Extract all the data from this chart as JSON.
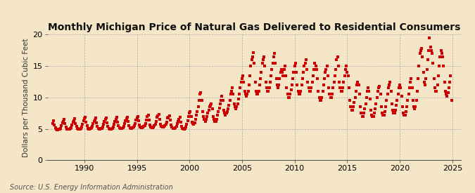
{
  "title": "Monthly Michigan Price of Natural Gas Delivered to Residential Consumers",
  "ylabel": "Dollars per Thousand Cubic Feet",
  "source": "Source: U.S. Energy Information Administration",
  "bg_color": "#F5E6C8",
  "plot_bg_color": "#F5E6C8",
  "marker_color": "#CC0000",
  "xlim": [
    1986.5,
    2025.8
  ],
  "ylim": [
    0,
    20
  ],
  "yticks": [
    0,
    5,
    10,
    15,
    20
  ],
  "xticks": [
    1990,
    1995,
    2000,
    2005,
    2010,
    2015,
    2020,
    2025
  ],
  "marker_size": 5,
  "title_fontsize": 10,
  "ylabel_fontsize": 7.5,
  "tick_fontsize": 8,
  "source_fontsize": 7,
  "monthly_data": [
    [
      1987.0,
      5.8
    ],
    [
      1987.083,
      6.3
    ],
    [
      1987.167,
      5.6
    ],
    [
      1987.25,
      5.2
    ],
    [
      1987.333,
      4.9
    ],
    [
      1987.417,
      4.8
    ],
    [
      1987.5,
      4.8
    ],
    [
      1987.583,
      4.9
    ],
    [
      1987.667,
      5.0
    ],
    [
      1987.75,
      5.1
    ],
    [
      1987.833,
      5.5
    ],
    [
      1987.917,
      6.0
    ],
    [
      1988.0,
      6.2
    ],
    [
      1988.083,
      6.5
    ],
    [
      1988.167,
      5.8
    ],
    [
      1988.25,
      5.3
    ],
    [
      1988.333,
      5.0
    ],
    [
      1988.417,
      4.9
    ],
    [
      1988.5,
      4.9
    ],
    [
      1988.583,
      5.0
    ],
    [
      1988.667,
      5.1
    ],
    [
      1988.75,
      5.2
    ],
    [
      1988.833,
      5.6
    ],
    [
      1988.917,
      6.1
    ],
    [
      1989.0,
      6.3
    ],
    [
      1989.083,
      6.6
    ],
    [
      1989.167,
      5.9
    ],
    [
      1989.25,
      5.4
    ],
    [
      1989.333,
      5.1
    ],
    [
      1989.417,
      4.9
    ],
    [
      1989.5,
      5.0
    ],
    [
      1989.583,
      5.0
    ],
    [
      1989.667,
      5.1
    ],
    [
      1989.75,
      5.3
    ],
    [
      1989.833,
      5.7
    ],
    [
      1989.917,
      6.3
    ],
    [
      1990.0,
      6.6
    ],
    [
      1990.083,
      6.8
    ],
    [
      1990.167,
      6.1
    ],
    [
      1990.25,
      5.5
    ],
    [
      1990.333,
      5.1
    ],
    [
      1990.417,
      5.0
    ],
    [
      1990.5,
      5.0
    ],
    [
      1990.583,
      5.1
    ],
    [
      1990.667,
      5.2
    ],
    [
      1990.75,
      5.4
    ],
    [
      1990.833,
      5.8
    ],
    [
      1990.917,
      6.2
    ],
    [
      1991.0,
      6.4
    ],
    [
      1991.083,
      6.7
    ],
    [
      1991.167,
      6.0
    ],
    [
      1991.25,
      5.4
    ],
    [
      1991.333,
      5.1
    ],
    [
      1991.417,
      5.0
    ],
    [
      1991.5,
      5.0
    ],
    [
      1991.583,
      5.1
    ],
    [
      1991.667,
      5.1
    ],
    [
      1991.75,
      5.3
    ],
    [
      1991.833,
      5.7
    ],
    [
      1991.917,
      6.2
    ],
    [
      1992.0,
      6.5
    ],
    [
      1992.083,
      6.7
    ],
    [
      1992.167,
      6.0
    ],
    [
      1992.25,
      5.4
    ],
    [
      1992.333,
      5.1
    ],
    [
      1992.417,
      5.0
    ],
    [
      1992.5,
      5.0
    ],
    [
      1992.583,
      5.0
    ],
    [
      1992.667,
      5.1
    ],
    [
      1992.75,
      5.3
    ],
    [
      1992.833,
      5.7
    ],
    [
      1992.917,
      6.2
    ],
    [
      1993.0,
      6.5
    ],
    [
      1993.083,
      6.8
    ],
    [
      1993.167,
      6.1
    ],
    [
      1993.25,
      5.5
    ],
    [
      1993.333,
      5.2
    ],
    [
      1993.417,
      5.1
    ],
    [
      1993.5,
      5.1
    ],
    [
      1993.583,
      5.1
    ],
    [
      1993.667,
      5.2
    ],
    [
      1993.75,
      5.4
    ],
    [
      1993.833,
      5.8
    ],
    [
      1993.917,
      6.3
    ],
    [
      1994.0,
      6.6
    ],
    [
      1994.083,
      6.9
    ],
    [
      1994.167,
      6.2
    ],
    [
      1994.25,
      5.5
    ],
    [
      1994.333,
      5.2
    ],
    [
      1994.417,
      5.1
    ],
    [
      1994.5,
      5.1
    ],
    [
      1994.583,
      5.2
    ],
    [
      1994.667,
      5.3
    ],
    [
      1994.75,
      5.5
    ],
    [
      1994.833,
      5.9
    ],
    [
      1994.917,
      6.4
    ],
    [
      1995.0,
      6.7
    ],
    [
      1995.083,
      7.0
    ],
    [
      1995.167,
      6.3
    ],
    [
      1995.25,
      5.6
    ],
    [
      1995.333,
      5.3
    ],
    [
      1995.417,
      5.2
    ],
    [
      1995.5,
      5.2
    ],
    [
      1995.583,
      5.3
    ],
    [
      1995.667,
      5.4
    ],
    [
      1995.75,
      5.5
    ],
    [
      1995.833,
      5.9
    ],
    [
      1995.917,
      6.4
    ],
    [
      1996.0,
      7.0
    ],
    [
      1996.083,
      7.2
    ],
    [
      1996.167,
      6.4
    ],
    [
      1996.25,
      5.6
    ],
    [
      1996.333,
      5.3
    ],
    [
      1996.417,
      5.2
    ],
    [
      1996.5,
      5.2
    ],
    [
      1996.583,
      5.3
    ],
    [
      1996.667,
      5.5
    ],
    [
      1996.75,
      5.7
    ],
    [
      1996.833,
      6.2
    ],
    [
      1996.917,
      6.8
    ],
    [
      1997.0,
      7.1
    ],
    [
      1997.083,
      7.3
    ],
    [
      1997.167,
      6.5
    ],
    [
      1997.25,
      5.7
    ],
    [
      1997.333,
      5.4
    ],
    [
      1997.417,
      5.3
    ],
    [
      1997.5,
      5.3
    ],
    [
      1997.583,
      5.4
    ],
    [
      1997.667,
      5.5
    ],
    [
      1997.75,
      5.7
    ],
    [
      1997.833,
      6.1
    ],
    [
      1997.917,
      6.7
    ],
    [
      1998.0,
      6.9
    ],
    [
      1998.083,
      7.1
    ],
    [
      1998.167,
      6.4
    ],
    [
      1998.25,
      5.6
    ],
    [
      1998.333,
      5.3
    ],
    [
      1998.417,
      5.1
    ],
    [
      1998.5,
      5.1
    ],
    [
      1998.583,
      5.1
    ],
    [
      1998.667,
      5.2
    ],
    [
      1998.75,
      5.4
    ],
    [
      1998.833,
      5.8
    ],
    [
      1998.917,
      6.2
    ],
    [
      1999.0,
      6.5
    ],
    [
      1999.083,
      6.8
    ],
    [
      1999.167,
      6.1
    ],
    [
      1999.25,
      5.4
    ],
    [
      1999.333,
      5.1
    ],
    [
      1999.417,
      5.0
    ],
    [
      1999.5,
      5.0
    ],
    [
      1999.583,
      5.1
    ],
    [
      1999.667,
      5.3
    ],
    [
      1999.75,
      5.7
    ],
    [
      1999.833,
      6.3
    ],
    [
      1999.917,
      7.0
    ],
    [
      2000.0,
      7.5
    ],
    [
      2000.083,
      7.8
    ],
    [
      2000.167,
      7.0
    ],
    [
      2000.25,
      6.1
    ],
    [
      2000.333,
      5.8
    ],
    [
      2000.417,
      5.7
    ],
    [
      2000.5,
      6.0
    ],
    [
      2000.583,
      6.5
    ],
    [
      2000.667,
      7.2
    ],
    [
      2000.75,
      7.8
    ],
    [
      2000.833,
      8.5
    ],
    [
      2000.917,
      9.5
    ],
    [
      2001.0,
      10.5
    ],
    [
      2001.083,
      10.8
    ],
    [
      2001.167,
      9.5
    ],
    [
      2001.25,
      7.8
    ],
    [
      2001.333,
      7.0
    ],
    [
      2001.417,
      6.5
    ],
    [
      2001.5,
      6.2
    ],
    [
      2001.583,
      6.5
    ],
    [
      2001.667,
      7.0
    ],
    [
      2001.75,
      7.5
    ],
    [
      2001.833,
      8.0
    ],
    [
      2001.917,
      8.5
    ],
    [
      2002.0,
      8.8
    ],
    [
      2002.083,
      9.0
    ],
    [
      2002.167,
      8.2
    ],
    [
      2002.25,
      7.0
    ],
    [
      2002.333,
      6.5
    ],
    [
      2002.417,
      6.2
    ],
    [
      2002.5,
      6.2
    ],
    [
      2002.583,
      6.5
    ],
    [
      2002.667,
      7.2
    ],
    [
      2002.75,
      7.8
    ],
    [
      2002.833,
      8.3
    ],
    [
      2002.917,
      9.0
    ],
    [
      2003.0,
      9.5
    ],
    [
      2003.083,
      10.2
    ],
    [
      2003.167,
      9.5
    ],
    [
      2003.25,
      8.0
    ],
    [
      2003.333,
      7.5
    ],
    [
      2003.417,
      7.2
    ],
    [
      2003.5,
      7.5
    ],
    [
      2003.583,
      7.8
    ],
    [
      2003.667,
      8.2
    ],
    [
      2003.75,
      8.8
    ],
    [
      2003.833,
      9.5
    ],
    [
      2003.917,
      10.5
    ],
    [
      2004.0,
      11.0
    ],
    [
      2004.083,
      11.5
    ],
    [
      2004.167,
      10.5
    ],
    [
      2004.25,
      9.0
    ],
    [
      2004.333,
      8.5
    ],
    [
      2004.417,
      8.2
    ],
    [
      2004.5,
      8.5
    ],
    [
      2004.583,
      9.0
    ],
    [
      2004.667,
      9.8
    ],
    [
      2004.75,
      10.5
    ],
    [
      2004.833,
      11.5
    ],
    [
      2004.917,
      12.5
    ],
    [
      2005.0,
      13.0
    ],
    [
      2005.083,
      13.5
    ],
    [
      2005.167,
      12.5
    ],
    [
      2005.25,
      11.0
    ],
    [
      2005.333,
      10.5
    ],
    [
      2005.417,
      10.2
    ],
    [
      2005.5,
      10.5
    ],
    [
      2005.583,
      11.0
    ],
    [
      2005.667,
      12.0
    ],
    [
      2005.75,
      13.5
    ],
    [
      2005.833,
      15.0
    ],
    [
      2005.917,
      16.0
    ],
    [
      2006.0,
      16.5
    ],
    [
      2006.083,
      17.2
    ],
    [
      2006.167,
      15.5
    ],
    [
      2006.25,
      12.5
    ],
    [
      2006.333,
      11.0
    ],
    [
      2006.417,
      10.5
    ],
    [
      2006.5,
      10.5
    ],
    [
      2006.583,
      11.0
    ],
    [
      2006.667,
      12.0
    ],
    [
      2006.75,
      13.0
    ],
    [
      2006.833,
      14.0
    ],
    [
      2006.917,
      15.5
    ],
    [
      2007.0,
      16.0
    ],
    [
      2007.083,
      16.5
    ],
    [
      2007.167,
      15.0
    ],
    [
      2007.25,
      12.5
    ],
    [
      2007.333,
      11.5
    ],
    [
      2007.417,
      11.0
    ],
    [
      2007.5,
      11.0
    ],
    [
      2007.583,
      11.5
    ],
    [
      2007.667,
      12.5
    ],
    [
      2007.75,
      13.5
    ],
    [
      2007.833,
      14.5
    ],
    [
      2007.917,
      15.5
    ],
    [
      2008.0,
      16.5
    ],
    [
      2008.083,
      17.0
    ],
    [
      2008.167,
      15.5
    ],
    [
      2008.25,
      13.0
    ],
    [
      2008.333,
      12.0
    ],
    [
      2008.417,
      11.5
    ],
    [
      2008.5,
      12.0
    ],
    [
      2008.583,
      13.0
    ],
    [
      2008.667,
      14.0
    ],
    [
      2008.75,
      14.5
    ],
    [
      2008.833,
      14.0
    ],
    [
      2008.917,
      13.5
    ],
    [
      2009.0,
      14.5
    ],
    [
      2009.083,
      15.0
    ],
    [
      2009.167,
      13.5
    ],
    [
      2009.25,
      11.5
    ],
    [
      2009.333,
      10.5
    ],
    [
      2009.417,
      10.0
    ],
    [
      2009.5,
      10.0
    ],
    [
      2009.583,
      10.5
    ],
    [
      2009.667,
      11.2
    ],
    [
      2009.75,
      12.0
    ],
    [
      2009.833,
      13.0
    ],
    [
      2009.917,
      14.0
    ],
    [
      2010.0,
      15.0
    ],
    [
      2010.083,
      15.5
    ],
    [
      2010.167,
      14.0
    ],
    [
      2010.25,
      12.0
    ],
    [
      2010.333,
      11.0
    ],
    [
      2010.417,
      10.5
    ],
    [
      2010.5,
      10.5
    ],
    [
      2010.583,
      11.0
    ],
    [
      2010.667,
      12.0
    ],
    [
      2010.75,
      13.0
    ],
    [
      2010.833,
      14.0
    ],
    [
      2010.917,
      15.0
    ],
    [
      2011.0,
      15.5
    ],
    [
      2011.083,
      16.0
    ],
    [
      2011.167,
      14.5
    ],
    [
      2011.25,
      12.5
    ],
    [
      2011.333,
      11.5
    ],
    [
      2011.417,
      11.0
    ],
    [
      2011.5,
      11.0
    ],
    [
      2011.583,
      11.5
    ],
    [
      2011.667,
      12.5
    ],
    [
      2011.75,
      13.5
    ],
    [
      2011.833,
      14.5
    ],
    [
      2011.917,
      15.5
    ],
    [
      2012.0,
      15.0
    ],
    [
      2012.083,
      14.5
    ],
    [
      2012.167,
      13.0
    ],
    [
      2012.25,
      11.0
    ],
    [
      2012.333,
      10.0
    ],
    [
      2012.417,
      9.5
    ],
    [
      2012.5,
      9.5
    ],
    [
      2012.583,
      10.0
    ],
    [
      2012.667,
      11.0
    ],
    [
      2012.75,
      12.0
    ],
    [
      2012.833,
      13.0
    ],
    [
      2012.917,
      14.0
    ],
    [
      2013.0,
      14.5
    ],
    [
      2013.083,
      15.0
    ],
    [
      2013.167,
      13.5
    ],
    [
      2013.25,
      11.5
    ],
    [
      2013.333,
      10.5
    ],
    [
      2013.417,
      10.0
    ],
    [
      2013.5,
      10.0
    ],
    [
      2013.583,
      10.5
    ],
    [
      2013.667,
      11.5
    ],
    [
      2013.75,
      12.5
    ],
    [
      2013.833,
      13.5
    ],
    [
      2013.917,
      14.5
    ],
    [
      2014.0,
      16.0
    ],
    [
      2014.083,
      16.5
    ],
    [
      2014.167,
      15.0
    ],
    [
      2014.25,
      12.5
    ],
    [
      2014.333,
      11.5
    ],
    [
      2014.417,
      11.0
    ],
    [
      2014.5,
      11.0
    ],
    [
      2014.583,
      11.5
    ],
    [
      2014.667,
      12.5
    ],
    [
      2014.75,
      13.5
    ],
    [
      2014.833,
      14.5
    ],
    [
      2014.917,
      15.0
    ],
    [
      2015.0,
      14.0
    ],
    [
      2015.083,
      13.5
    ],
    [
      2015.167,
      11.5
    ],
    [
      2015.25,
      9.5
    ],
    [
      2015.333,
      8.5
    ],
    [
      2015.417,
      8.0
    ],
    [
      2015.5,
      8.0
    ],
    [
      2015.583,
      8.5
    ],
    [
      2015.667,
      9.2
    ],
    [
      2015.75,
      10.0
    ],
    [
      2015.833,
      11.0
    ],
    [
      2015.917,
      12.0
    ],
    [
      2016.0,
      12.5
    ],
    [
      2016.083,
      12.0
    ],
    [
      2016.167,
      10.5
    ],
    [
      2016.25,
      8.5
    ],
    [
      2016.333,
      7.5
    ],
    [
      2016.417,
      7.0
    ],
    [
      2016.5,
      7.0
    ],
    [
      2016.583,
      7.5
    ],
    [
      2016.667,
      8.2
    ],
    [
      2016.75,
      9.0
    ],
    [
      2016.833,
      10.0
    ],
    [
      2016.917,
      11.0
    ],
    [
      2017.0,
      11.5
    ],
    [
      2017.083,
      11.0
    ],
    [
      2017.167,
      9.8
    ],
    [
      2017.25,
      8.0
    ],
    [
      2017.333,
      7.2
    ],
    [
      2017.417,
      7.0
    ],
    [
      2017.5,
      7.0
    ],
    [
      2017.583,
      7.5
    ],
    [
      2017.667,
      8.2
    ],
    [
      2017.75,
      9.0
    ],
    [
      2017.833,
      10.0
    ],
    [
      2017.917,
      11.0
    ],
    [
      2018.0,
      11.5
    ],
    [
      2018.083,
      11.8
    ],
    [
      2018.167,
      10.5
    ],
    [
      2018.25,
      8.5
    ],
    [
      2018.333,
      7.5
    ],
    [
      2018.417,
      7.2
    ],
    [
      2018.5,
      7.2
    ],
    [
      2018.583,
      7.8
    ],
    [
      2018.667,
      8.5
    ],
    [
      2018.75,
      9.5
    ],
    [
      2018.833,
      10.5
    ],
    [
      2018.917,
      11.5
    ],
    [
      2019.0,
      12.0
    ],
    [
      2019.083,
      12.5
    ],
    [
      2019.167,
      11.0
    ],
    [
      2019.25,
      9.0
    ],
    [
      2019.333,
      8.0
    ],
    [
      2019.417,
      7.5
    ],
    [
      2019.5,
      7.5
    ],
    [
      2019.583,
      8.0
    ],
    [
      2019.667,
      8.8
    ],
    [
      2019.75,
      9.5
    ],
    [
      2019.833,
      10.5
    ],
    [
      2019.917,
      11.5
    ],
    [
      2020.0,
      12.0
    ],
    [
      2020.083,
      11.5
    ],
    [
      2020.167,
      10.2
    ],
    [
      2020.25,
      8.5
    ],
    [
      2020.333,
      7.5
    ],
    [
      2020.417,
      7.2
    ],
    [
      2020.5,
      7.2
    ],
    [
      2020.583,
      7.8
    ],
    [
      2020.667,
      8.5
    ],
    [
      2020.75,
      9.5
    ],
    [
      2020.833,
      10.5
    ],
    [
      2020.917,
      11.5
    ],
    [
      2021.0,
      12.5
    ],
    [
      2021.083,
      13.0
    ],
    [
      2021.167,
      11.5
    ],
    [
      2021.25,
      9.5
    ],
    [
      2021.333,
      8.5
    ],
    [
      2021.417,
      8.2
    ],
    [
      2021.5,
      8.5
    ],
    [
      2021.583,
      9.5
    ],
    [
      2021.667,
      11.0
    ],
    [
      2021.75,
      13.0
    ],
    [
      2021.833,
      15.0
    ],
    [
      2021.917,
      17.0
    ],
    [
      2022.0,
      17.5
    ],
    [
      2022.083,
      17.8
    ],
    [
      2022.167,
      16.5
    ],
    [
      2022.25,
      14.0
    ],
    [
      2022.333,
      12.5
    ],
    [
      2022.417,
      12.0
    ],
    [
      2022.5,
      13.0
    ],
    [
      2022.583,
      14.5
    ],
    [
      2022.667,
      16.0
    ],
    [
      2022.75,
      17.5
    ],
    [
      2022.833,
      19.5
    ],
    [
      2022.917,
      18.0
    ],
    [
      2023.0,
      17.5
    ],
    [
      2023.083,
      17.0
    ],
    [
      2023.167,
      15.5
    ],
    [
      2023.25,
      13.0
    ],
    [
      2023.333,
      11.5
    ],
    [
      2023.417,
      11.0
    ],
    [
      2023.5,
      11.0
    ],
    [
      2023.583,
      12.0
    ],
    [
      2023.667,
      13.5
    ],
    [
      2023.75,
      15.0
    ],
    [
      2023.833,
      16.5
    ],
    [
      2023.917,
      17.5
    ],
    [
      2024.0,
      17.0
    ],
    [
      2024.083,
      16.5
    ],
    [
      2024.167,
      15.0
    ],
    [
      2024.25,
      12.5
    ],
    [
      2024.333,
      11.0
    ],
    [
      2024.417,
      10.5
    ],
    [
      2024.5,
      10.2
    ],
    [
      2024.583,
      10.8
    ],
    [
      2024.667,
      11.5
    ],
    [
      2024.75,
      12.5
    ],
    [
      2024.833,
      13.5
    ],
    [
      2024.917,
      9.5
    ]
  ]
}
